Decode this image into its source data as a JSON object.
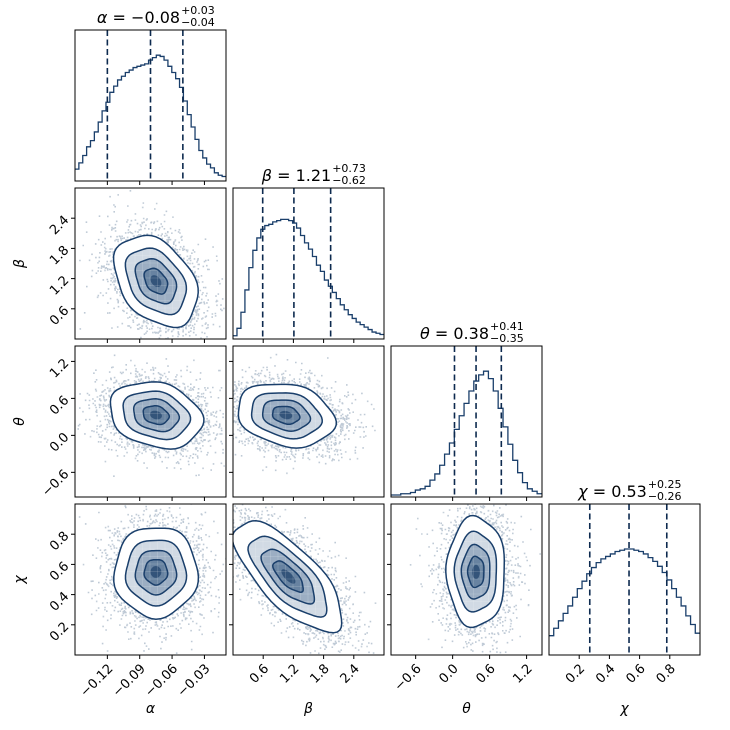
{
  "chart_data": {
    "type": "corner",
    "color": "#1a3f6b",
    "quantile_line_color": "#0d2a4f",
    "parameters": [
      {
        "symbol": "α",
        "label": "α",
        "median": "−0.08",
        "plus": "+0.03",
        "minus": "−0.04",
        "range": [
          -0.15,
          -0.01
        ],
        "ticks": [
          -0.12,
          -0.09,
          -0.06,
          -0.03
        ],
        "tick_labels": [
          "−0.12",
          "−0.09",
          "−0.06",
          "−0.03"
        ],
        "quantiles": [
          -0.12,
          -0.08,
          -0.05
        ]
      },
      {
        "symbol": "β",
        "label": "β",
        "median": "1.21",
        "plus": "+0.73",
        "minus": "−0.62",
        "range": [
          0.0,
          3.0
        ],
        "ticks": [
          0.6,
          1.2,
          1.8,
          2.4
        ],
        "tick_labels": [
          "0.6",
          "1.2",
          "1.8",
          "2.4"
        ],
        "quantiles": [
          0.59,
          1.21,
          1.94
        ]
      },
      {
        "symbol": "θ",
        "label": "θ",
        "median": "0.38",
        "plus": "+0.41",
        "minus": "−0.35",
        "range": [
          -1.0,
          1.45
        ],
        "ticks": [
          -0.6,
          0.0,
          0.6,
          1.2
        ],
        "tick_labels": [
          "−0.6",
          "0.0",
          "0.6",
          "1.2"
        ],
        "quantiles": [
          0.03,
          0.38,
          0.79
        ]
      },
      {
        "symbol": "χ",
        "label": "χ",
        "median": "0.53",
        "plus": "+0.25",
        "minus": "−0.26",
        "range": [
          0.0,
          1.0
        ],
        "ticks": [
          0.2,
          0.4,
          0.6,
          0.8
        ],
        "tick_labels": [
          "0.2",
          "0.4",
          "0.6",
          "0.8"
        ],
        "quantiles": [
          0.27,
          0.53,
          0.78
        ]
      }
    ],
    "histograms": [
      [
        0.08,
        0.13,
        0.19,
        0.26,
        0.31,
        0.38,
        0.46,
        0.55,
        0.62,
        0.7,
        0.75,
        0.8,
        0.83,
        0.86,
        0.88,
        0.9,
        0.91,
        0.92,
        0.93,
        0.96,
        0.98,
        1.0,
        0.99,
        0.96,
        0.91,
        0.86,
        0.81,
        0.74,
        0.63,
        0.52,
        0.42,
        0.32,
        0.23,
        0.17,
        0.12,
        0.09,
        0.05,
        0.03,
        0.02
      ],
      [
        0.01,
        0.07,
        0.2,
        0.38,
        0.56,
        0.7,
        0.8,
        0.87,
        0.9,
        0.91,
        0.93,
        0.94,
        0.95,
        0.95,
        0.94,
        0.92,
        0.88,
        0.82,
        0.76,
        0.71,
        0.65,
        0.58,
        0.53,
        0.46,
        0.41,
        0.36,
        0.31,
        0.26,
        0.22,
        0.18,
        0.15,
        0.12,
        0.1,
        0.08,
        0.06,
        0.04,
        0.03,
        0.02
      ],
      [
        0.0,
        0.0,
        0.01,
        0.01,
        0.02,
        0.04,
        0.05,
        0.07,
        0.12,
        0.17,
        0.24,
        0.33,
        0.42,
        0.53,
        0.64,
        0.74,
        0.84,
        0.92,
        0.97,
        1.0,
        0.94,
        0.84,
        0.7,
        0.55,
        0.41,
        0.28,
        0.18,
        0.1,
        0.05,
        0.03,
        0.01
      ],
      [
        0.14,
        0.2,
        0.26,
        0.32,
        0.38,
        0.45,
        0.52,
        0.58,
        0.64,
        0.69,
        0.73,
        0.76,
        0.78,
        0.8,
        0.82,
        0.83,
        0.84,
        0.84,
        0.83,
        0.82,
        0.8,
        0.77,
        0.74,
        0.7,
        0.65,
        0.59,
        0.52,
        0.45,
        0.38,
        0.3,
        0.23,
        0.16
      ]
    ],
    "pairs": [
      {
        "row": 1,
        "col": 0,
        "center": [
          -0.075,
          1.15
        ],
        "sx": 0.018,
        "sy": 0.42,
        "rho": -0.35
      },
      {
        "row": 2,
        "col": 0,
        "center": [
          -0.075,
          0.33
        ],
        "sx": 0.02,
        "sy": 0.25,
        "rho": -0.2
      },
      {
        "row": 2,
        "col": 1,
        "center": [
          1.05,
          0.33
        ],
        "sx": 0.45,
        "sy": 0.24,
        "rho": -0.2
      },
      {
        "row": 3,
        "col": 0,
        "center": [
          -0.075,
          0.55
        ],
        "sx": 0.018,
        "sy": 0.14,
        "rho": 0.0
      },
      {
        "row": 3,
        "col": 1,
        "center": [
          1.1,
          0.52
        ],
        "sx": 0.5,
        "sy": 0.17,
        "rho": -0.72
      },
      {
        "row": 3,
        "col": 2,
        "center": [
          0.38,
          0.55
        ],
        "sx": 0.22,
        "sy": 0.17,
        "rho": 0.0
      }
    ],
    "contour_levels_sigma": [
      0.5,
      1.0,
      1.5,
      2.0
    ],
    "grid": false,
    "legend": "none"
  }
}
